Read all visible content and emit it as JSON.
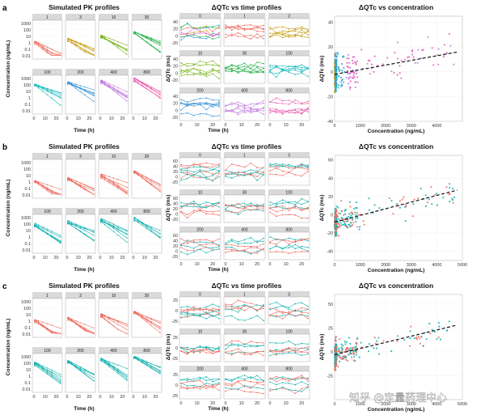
{
  "watermark": "知乎 @定量药理中心",
  "doses": [
    "1",
    "3",
    "10",
    "30",
    "100",
    "200",
    "400",
    "800"
  ],
  "colors": {
    "d1": "#ef6f63",
    "d3": "#c9a016",
    "d10": "#7bb51f",
    "d30": "#2bb24c",
    "d100": "#1fbcc0",
    "d200": "#3e95d6",
    "d400": "#c27ee0",
    "d800": "#ec5fb0",
    "red": "#ef6f63",
    "teal": "#19b3b0"
  },
  "rows": [
    {
      "label": "a",
      "pk_title": "Simulated PK profiles",
      "qt_title": "ΔQTc vs time profiles",
      "sc_title": "ΔQTc vs concentration",
      "color_mode": "dose"
    },
    {
      "label": "b",
      "pk_title": "Simulated PK profiles",
      "qt_title": "ΔQTc vs time profiles",
      "sc_title": "ΔQTc vs concentration",
      "color_mode": "two"
    },
    {
      "label": "c",
      "pk_title": "Simulated PK profiles",
      "qt_title": "ΔQTc vs time profiles",
      "sc_title": "ΔQTc vs concentration",
      "color_mode": "two"
    }
  ],
  "axis_text": {
    "pk_ylabel": "Concentration (ng/mL)",
    "time_xlabel": "Time (h)",
    "qt_ylabel": "ΔQTc (ms)",
    "sc_xlabel": "Concentration (ng/mL)",
    "sc_ylabel": "ΔQTc (ms)"
  },
  "chart_data": [
    {
      "type": "line",
      "panel": "a-pk",
      "facet_by": "dose (mg)",
      "facets": [
        "1",
        "3",
        "10",
        "30",
        "100",
        "200",
        "400",
        "800"
      ],
      "x_ticks": [
        0,
        10,
        20
      ],
      "xlim": [
        0,
        24
      ],
      "yscale": "log",
      "y_ticks": [
        "1000",
        "100",
        "10",
        "1",
        "0.1",
        "0.01"
      ],
      "ylim": [
        0.01,
        1000
      ],
      "cmax_by_dose": [
        1.5,
        4,
        12,
        40,
        120,
        250,
        500,
        900
      ],
      "time_points": [
        0.5,
        1,
        2,
        4,
        8,
        12,
        16,
        24
      ]
    },
    {
      "type": "line",
      "panel": "a-qt",
      "facets": [
        "0",
        "1",
        "3",
        "10",
        "30",
        "100",
        "200",
        "400",
        "800"
      ],
      "x_ticks": [
        0,
        10,
        20
      ],
      "xlim": [
        0,
        24
      ],
      "y_ticks": [
        40,
        20,
        0,
        -20
      ],
      "ylim": [
        -30,
        50
      ]
    },
    {
      "type": "scatter",
      "panel": "a-scatter",
      "xlim": [
        0,
        5000
      ],
      "ylim": [
        -40,
        45
      ],
      "x_ticks": [
        0,
        1000,
        2000,
        3000,
        4000
      ],
      "y_ticks": [
        40,
        20,
        0,
        -20,
        -40
      ],
      "trend": {
        "x": [
          0,
          4800
        ],
        "y": [
          -2,
          16
        ],
        "style": "dashed"
      }
    },
    {
      "type": "line",
      "panel": "b-pk",
      "facets": [
        "1",
        "3",
        "10",
        "30",
        "100",
        "200",
        "400",
        "800"
      ],
      "x_ticks": [
        0,
        10,
        20
      ],
      "yscale": "log",
      "y_ticks": [
        "1000",
        "100",
        "10",
        "1",
        "0.1",
        "0.01"
      ]
    },
    {
      "type": "line",
      "panel": "b-qt",
      "facets": [
        "0",
        "1",
        "3",
        "10",
        "30",
        "100",
        "200",
        "400",
        "800"
      ],
      "x_ticks": [
        0,
        10,
        20
      ],
      "y_ticks": [
        60,
        40,
        20,
        0,
        -20
      ],
      "ylim": [
        -30,
        65
      ]
    },
    {
      "type": "scatter",
      "panel": "b-scatter",
      "xlim": [
        0,
        5000
      ],
      "ylim": [
        -50,
        65
      ],
      "x_ticks": [
        0,
        1000,
        2000,
        3000,
        4000,
        5000
      ],
      "y_ticks": [
        60,
        40,
        20,
        0,
        -20,
        -40
      ],
      "trend": {
        "x": [
          0,
          4800
        ],
        "y": [
          -8,
          27
        ],
        "style": "dashed"
      }
    },
    {
      "type": "line",
      "panel": "c-pk",
      "facets": [
        "1",
        "3",
        "10",
        "30",
        "100",
        "200",
        "400",
        "800"
      ],
      "x_ticks": [
        0,
        10,
        20
      ],
      "yscale": "log",
      "y_ticks": [
        "1000",
        "100",
        "10",
        "1",
        "0.1",
        "0.01"
      ]
    },
    {
      "type": "line",
      "panel": "c-qt",
      "facets": [
        "0",
        "1",
        "3",
        "10",
        "30",
        "100",
        "200",
        "400",
        "800"
      ],
      "x_ticks": [
        0,
        10,
        20
      ],
      "y_ticks": [
        25,
        0,
        -25
      ],
      "ylim": [
        -40,
        45
      ]
    },
    {
      "type": "scatter",
      "panel": "c-scatter",
      "xlim": [
        0,
        5000
      ],
      "ylim": [
        -50,
        60
      ],
      "x_ticks": [
        0,
        1000,
        2000,
        3000,
        4000,
        5000
      ],
      "y_ticks": [
        50,
        25,
        0,
        -25
      ],
      "trend": {
        "x": [
          0,
          4800
        ],
        "y": [
          -3,
          28
        ],
        "style": "dashed"
      }
    }
  ]
}
